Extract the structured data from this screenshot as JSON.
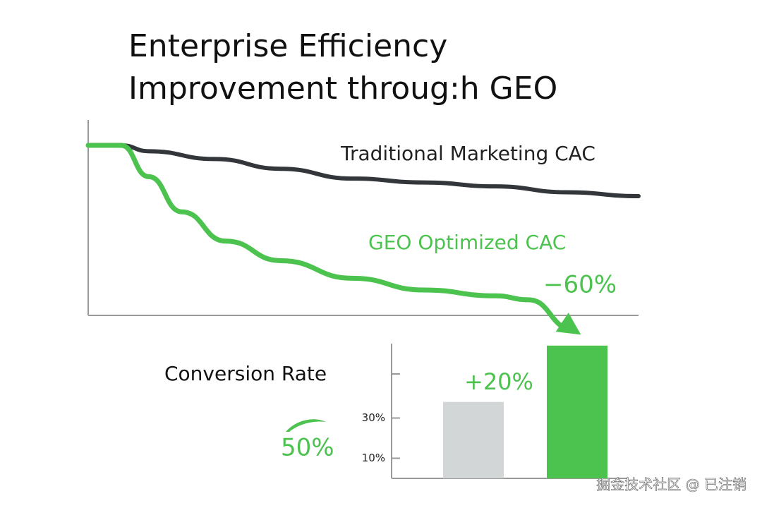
{
  "chart_data": [
    {
      "type": "line",
      "title": [
        "Enterprise Efficiency",
        "Improvement throug:h GEO"
      ],
      "xlim": [
        0,
        10
      ],
      "ylim": [
        0,
        100
      ],
      "series": [
        {
          "name": "Traditional Marketing CAC",
          "color": "#33373b",
          "x": [
            0,
            0.6,
            1.1,
            2.3,
            3.5,
            4.8,
            6.1,
            7.4,
            8.7,
            10
          ],
          "values": [
            87,
            87,
            84,
            80,
            75,
            70,
            68,
            66,
            63,
            61
          ]
        },
        {
          "name": "GEO Optimized CAC",
          "color": "#4cc24f",
          "x": [
            0,
            0.6,
            1.1,
            1.7,
            2.5,
            3.5,
            4.8,
            6.1,
            7.4,
            8.0,
            8.8
          ],
          "values": [
            87,
            87,
            71,
            53,
            38,
            28,
            19,
            13,
            10,
            8,
            -7
          ]
        }
      ],
      "annotations": [
        "−60%"
      ]
    },
    {
      "type": "bar",
      "title": "Conversion Rate",
      "categories": [
        null,
        null
      ],
      "ylim": [
        0,
        67
      ],
      "yticks": [
        {
          "value": 30,
          "label": "30%"
        },
        {
          "value": 10,
          "label": "10%"
        }
      ],
      "series": [
        {
          "colors": [
            "#d3d6d6",
            "#4cc24f"
          ],
          "values": [
            38,
            66
          ]
        }
      ],
      "annotations": [
        "+20%",
        "50%"
      ]
    }
  ],
  "watermark": "掘金技术社区 @ 已注销"
}
